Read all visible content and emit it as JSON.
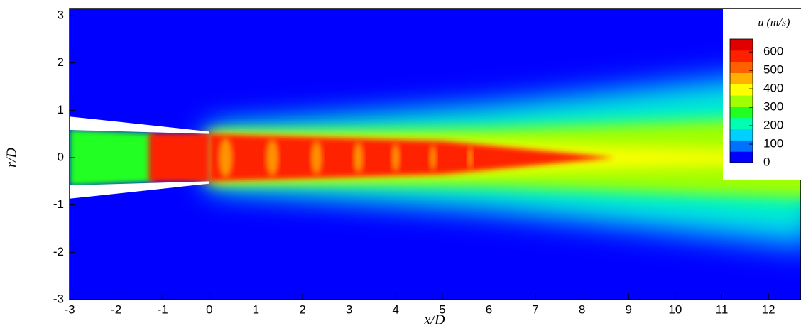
{
  "chart_data": {
    "type": "contour",
    "xlabel": "x/D",
    "ylabel": "r/D",
    "xlim": [
      -3,
      12.7
    ],
    "ylim": [
      -3,
      3.15
    ],
    "xticks": [
      -3,
      -2,
      -1,
      0,
      1,
      2,
      3,
      4,
      5,
      6,
      7,
      8,
      9,
      10,
      11,
      12
    ],
    "yticks": [
      -3,
      -2,
      -1,
      0,
      1,
      2,
      3
    ],
    "colorbar": {
      "title": "u (m/s)",
      "lim": [
        0,
        670
      ],
      "ticks": [
        0,
        100,
        200,
        300,
        400,
        500,
        600
      ],
      "colormap": [
        "#0000ff",
        "#0070ff",
        "#00d0ff",
        "#00ffb0",
        "#20ff20",
        "#a0ff00",
        "#ffff00",
        "#ffb000",
        "#ff6000",
        "#ff2000",
        "#e00000"
      ]
    }
  }
}
